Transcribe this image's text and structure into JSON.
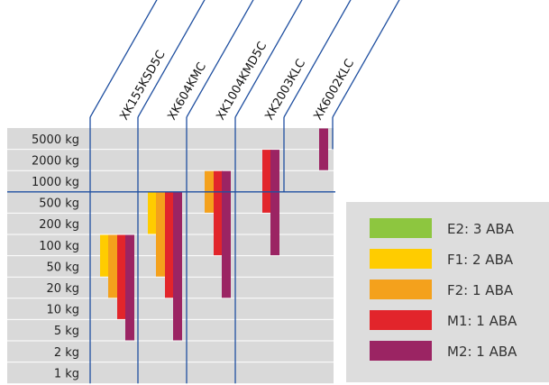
{
  "chart_data": {
    "type": "range-bar",
    "title": "",
    "xlabel": "",
    "ylabel": "",
    "y_levels": [
      "5000 kg",
      "2000 kg",
      "1000 kg",
      "500 kg",
      "200 kg",
      "100 kg",
      "50 kg",
      "20 kg",
      "10 kg",
      "5 kg",
      "2 kg",
      "1 kg"
    ],
    "products": [
      "XK155KSD5C",
      "XK604KMC",
      "XK1004KMD5C",
      "XK2003KLC",
      "XK6002KLC"
    ],
    "legend": [
      {
        "key": "E2",
        "label": "E2: 3 ABA",
        "color": "#8dc63f"
      },
      {
        "key": "F1",
        "label": "F1: 2 ABA",
        "color": "#ffcc00"
      },
      {
        "key": "F2",
        "label": "F2: 1 ABA",
        "color": "#f4a11c"
      },
      {
        "key": "M1",
        "label": "M1: 1 ABA",
        "color": "#e2252b"
      },
      {
        "key": "M2",
        "label": "M2: 1 ABA",
        "color": "#9b2463"
      }
    ],
    "bars": [
      {
        "product": "XK155KSD5C",
        "class": "F1",
        "from": "100 kg",
        "to": "50 kg"
      },
      {
        "product": "XK155KSD5C",
        "class": "F2",
        "from": "100 kg",
        "to": "20 kg"
      },
      {
        "product": "XK155KSD5C",
        "class": "M1",
        "from": "100 kg",
        "to": "10 kg"
      },
      {
        "product": "XK155KSD5C",
        "class": "M2",
        "from": "100 kg",
        "to": "5 kg"
      },
      {
        "product": "XK604KMC",
        "class": "F1",
        "from": "500 kg",
        "to": "200 kg"
      },
      {
        "product": "XK604KMC",
        "class": "F2",
        "from": "500 kg",
        "to": "50 kg"
      },
      {
        "product": "XK604KMC",
        "class": "M1",
        "from": "500 kg",
        "to": "20 kg"
      },
      {
        "product": "XK604KMC",
        "class": "M2",
        "from": "500 kg",
        "to": "5 kg"
      },
      {
        "product": "XK1004KMD5C",
        "class": "F2",
        "from": "1000 kg",
        "to": "500 kg"
      },
      {
        "product": "XK1004KMD5C",
        "class": "M1",
        "from": "1000 kg",
        "to": "100 kg"
      },
      {
        "product": "XK1004KMD5C",
        "class": "M2",
        "from": "1000 kg",
        "to": "20 kg"
      },
      {
        "product": "XK2003KLC",
        "class": "M1",
        "from": "2000 kg",
        "to": "500 kg"
      },
      {
        "product": "XK2003KLC",
        "class": "M2",
        "from": "2000 kg",
        "to": "100 kg"
      },
      {
        "product": "XK6002KLC",
        "class": "M2",
        "from": "5000 kg",
        "to": "2000 kg"
      }
    ]
  }
}
